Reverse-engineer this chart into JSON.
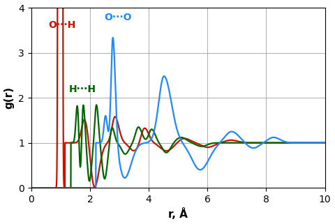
{
  "xlabel": "r, Å",
  "ylabel": "g(r)",
  "xlim": [
    0,
    10
  ],
  "ylim": [
    0,
    4
  ],
  "xticks": [
    0,
    2,
    4,
    6,
    8,
    10
  ],
  "yticks": [
    0,
    1,
    2,
    3,
    4
  ],
  "colors": {
    "OH": "#cc1100",
    "HH": "#006600",
    "OO": "#2288ff"
  },
  "labels": {
    "OH": "O···H",
    "HH": "H···H",
    "OO": "O···O"
  },
  "label_positions": {
    "OH": [
      0.58,
      3.62
    ],
    "HH": [
      1.28,
      2.18
    ],
    "OO": [
      2.48,
      3.78
    ]
  }
}
